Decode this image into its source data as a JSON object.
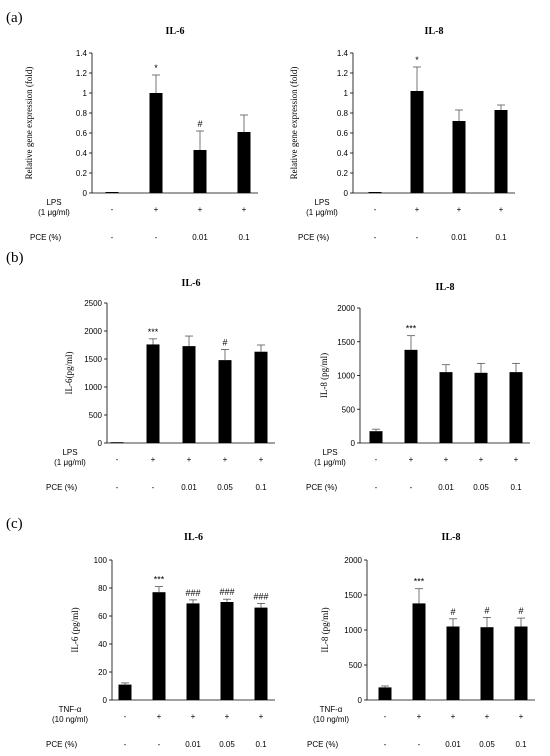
{
  "panel_labels": [
    "(a)",
    "(b)",
    "(c)"
  ],
  "chart_data": [
    {
      "type": "bar",
      "title": "IL-6",
      "ylabel": "Relative gene expression (fold)",
      "ylim": [
        0,
        1.4
      ],
      "yticks": [
        "0",
        "0.2",
        "0.4",
        "0.6",
        "0.8",
        "1",
        "1.2",
        "1.4"
      ],
      "values": [
        0.01,
        1.0,
        0.43,
        0.61
      ],
      "errors": [
        0,
        0.18,
        0.19,
        0.17
      ],
      "annotations": [
        "",
        "*",
        "#",
        ""
      ],
      "conditions": [
        {
          "name": "LPS (1 μg/ml)",
          "values": [
            "-",
            "+",
            "+",
            "+"
          ]
        },
        {
          "name": "PCE (%)",
          "values": [
            "-",
            "-",
            "0.01",
            "0.1"
          ]
        }
      ]
    },
    {
      "type": "bar",
      "title": "IL-8",
      "ylabel": "Relative gene expression (fold)",
      "ylim": [
        0,
        1.4
      ],
      "yticks": [
        "0",
        "0.2",
        "0.4",
        "0.6",
        "0.8",
        "1",
        "1.2",
        "1.4"
      ],
      "values": [
        0.01,
        1.02,
        0.72,
        0.83
      ],
      "errors": [
        0,
        0.24,
        0.11,
        0.05
      ],
      "annotations": [
        "",
        "*",
        "",
        ""
      ],
      "conditions": [
        {
          "name": "LPS (1 μg/ml)",
          "values": [
            "-",
            "+",
            "+",
            "+"
          ]
        },
        {
          "name": "PCE (%)",
          "values": [
            "-",
            "-",
            "0.01",
            "0.1"
          ]
        }
      ]
    },
    {
      "type": "bar",
      "title": "IL-6",
      "ylabel": "IL-6(pg/ml)",
      "ylim": [
        0,
        2500
      ],
      "yticks": [
        "0",
        "500",
        "1000",
        "1500",
        "2000",
        "2500"
      ],
      "values": [
        10,
        1760,
        1730,
        1480,
        1630
      ],
      "errors": [
        0,
        100,
        180,
        190,
        120
      ],
      "annotations": [
        "",
        "***",
        "",
        "#",
        ""
      ],
      "conditions": [
        {
          "name": "LPS (1 μg/ml)",
          "values": [
            "-",
            "+",
            "+",
            "+",
            "+"
          ]
        },
        {
          "name": "PCE (%)",
          "values": [
            "-",
            "-",
            "0.01",
            "0.05",
            "0.1"
          ]
        }
      ]
    },
    {
      "type": "bar",
      "title": "IL-8",
      "ylabel": "IL-8 (pg/ml)",
      "ylim": [
        0,
        2000
      ],
      "yticks": [
        "0",
        "500",
        "1000",
        "1500",
        "2000"
      ],
      "values": [
        175,
        1380,
        1050,
        1040,
        1050
      ],
      "errors": [
        30,
        210,
        110,
        140,
        130
      ],
      "annotations": [
        "",
        "***",
        "",
        "",
        ""
      ],
      "conditions": [
        {
          "name": "LPS (1 μg/ml)",
          "values": [
            "-",
            "+",
            "+",
            "+",
            "+"
          ]
        },
        {
          "name": "PCE (%)",
          "values": [
            "-",
            "-",
            "0.01",
            "0.05",
            "0.1"
          ]
        }
      ]
    },
    {
      "type": "bar",
      "title": "IL-6",
      "ylabel": "IL-6 (pg/ml)",
      "ylim": [
        0,
        100
      ],
      "yticks": [
        "0",
        "20",
        "40",
        "60",
        "80",
        "100"
      ],
      "values": [
        11,
        77,
        69,
        70,
        66
      ],
      "errors": [
        1.2,
        4,
        2.5,
        2,
        3
      ],
      "annotations": [
        "",
        "***",
        "###",
        "###",
        "###"
      ],
      "conditions": [
        {
          "name": "TNF-α (10 ng/ml)",
          "values": [
            "-",
            "+",
            "+",
            "+",
            "+"
          ]
        },
        {
          "name": "PCE (%)",
          "values": [
            "-",
            "-",
            "0.01",
            "0.05",
            "0.1"
          ]
        }
      ]
    },
    {
      "type": "bar",
      "title": "IL-8",
      "ylabel": "IL-8 (pg/ml)",
      "ylim": [
        0,
        2000
      ],
      "yticks": [
        "0",
        "500",
        "1000",
        "1500",
        "2000"
      ],
      "values": [
        180,
        1380,
        1050,
        1040,
        1050
      ],
      "errors": [
        20,
        210,
        110,
        140,
        120
      ],
      "annotations": [
        "",
        "***",
        "#",
        "#",
        "#"
      ],
      "conditions": [
        {
          "name": "TNF-α (10 ng/ml)",
          "values": [
            "-",
            "+",
            "+",
            "+",
            "+"
          ]
        },
        {
          "name": "PCE (%)",
          "values": [
            "-",
            "-",
            "0.01",
            "0.05",
            "0.1"
          ]
        }
      ]
    }
  ]
}
